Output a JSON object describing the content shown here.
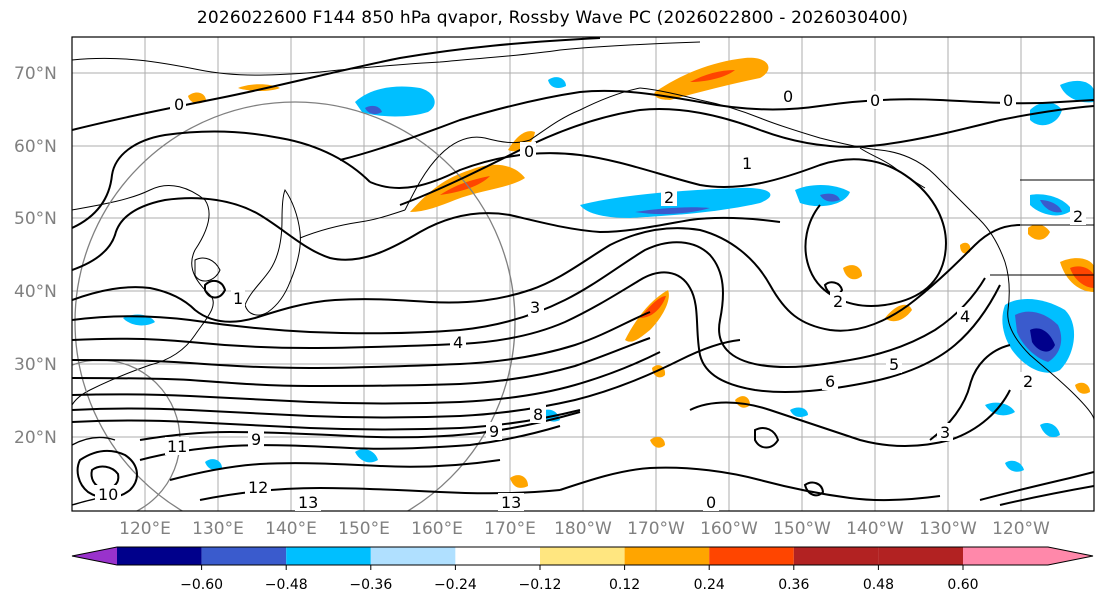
{
  "title": "2026022600 F144 850 hPa qvapor, Rossby Wave PC (2026022800 - 2026030400)",
  "lat_labels": [
    "70°N",
    "60°N",
    "50°N",
    "40°N",
    "30°N",
    "20°N"
  ],
  "lon_labels": [
    "120°E",
    "130°E",
    "140°E",
    "150°E",
    "160°E",
    "170°E",
    "180°W",
    "170°W",
    "160°W",
    "150°W",
    "140°W",
    "130°W",
    "120°W"
  ],
  "contour_labels": [
    "0",
    "0",
    "0",
    "0",
    "0",
    "1",
    "1",
    "2",
    "2",
    "2",
    "2",
    "3",
    "3",
    "4",
    "4",
    "5",
    "6",
    "8",
    "9",
    "9",
    "11",
    "12",
    "13",
    "13",
    "10",
    "0"
  ],
  "colorbar": {
    "ticks": [
      "−0.60",
      "−0.48",
      "−0.36",
      "−0.24",
      "−0.12",
      "0.12",
      "0.24",
      "0.36",
      "0.48",
      "0.60"
    ],
    "colors": [
      "#9932cc",
      "#00008b",
      "#3a5bcd",
      "#00bfff",
      "#b0e0ff",
      "#ffffff",
      "#ffe680",
      "#ffa500",
      "#ff4500",
      "#b22222",
      "#ff88aa"
    ]
  }
}
